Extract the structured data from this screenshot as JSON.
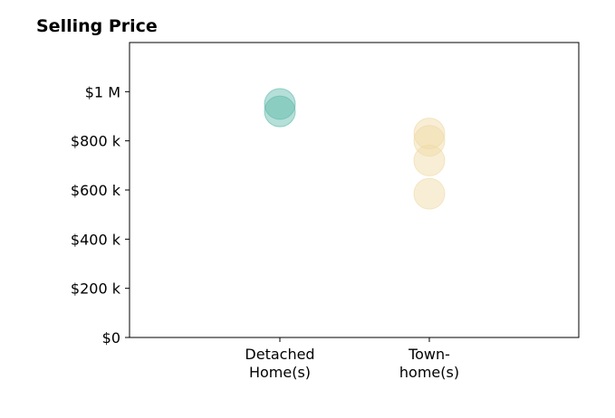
{
  "chart_data": {
    "type": "scatter",
    "title": "Selling Price",
    "xlabel": "",
    "ylabel": "",
    "categories": [
      {
        "lines": [
          "Detached",
          "Home(s)"
        ]
      },
      {
        "lines": [
          "Town-",
          "home(s)"
        ]
      }
    ],
    "series": [
      {
        "category_index": 0,
        "color": "#5bb8a8",
        "values": [
          950000,
          920000
        ]
      },
      {
        "category_index": 1,
        "color": "#efd9a3",
        "values": [
          830000,
          800000,
          720000,
          585000
        ]
      }
    ],
    "ylim": [
      0,
      1200000
    ],
    "yticks": [
      {
        "value": 0,
        "label": "$0"
      },
      {
        "value": 200000,
        "label": "$200 k"
      },
      {
        "value": 400000,
        "label": "$400 k"
      },
      {
        "value": 600000,
        "label": "$600 k"
      },
      {
        "value": 800000,
        "label": "$800 k"
      },
      {
        "value": 1000000,
        "label": "$1 M"
      }
    ],
    "grid": false,
    "legend": "none"
  }
}
